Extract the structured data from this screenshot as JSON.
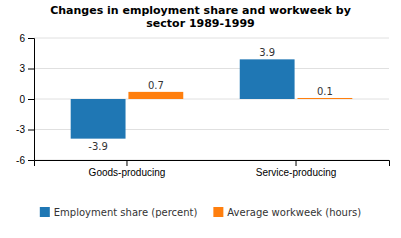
{
  "chart_data": {
    "type": "bar",
    "title": "Changes in employment share and workweek by\nsector 1989-1999",
    "categories": [
      "Goods-producing",
      "Service-producing"
    ],
    "series": [
      {
        "name": "Employment share (percent)",
        "values": [
          -3.9,
          3.9
        ]
      },
      {
        "name": "Average workweek (hours)",
        "values": [
          0.7,
          0.1
        ]
      }
    ],
    "ylim": [
      -6,
      6
    ],
    "yticks": [
      -6,
      -3,
      0,
      3,
      6
    ],
    "grid": true,
    "legend": "bottom",
    "data_labels": true
  }
}
